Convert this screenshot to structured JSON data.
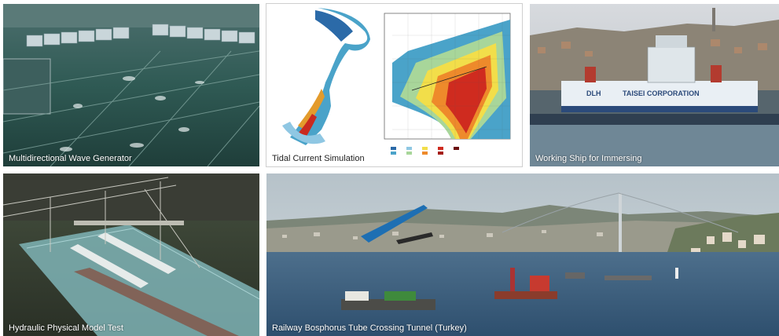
{
  "panels": [
    {
      "caption": "Multidirectional Wave Generator"
    },
    {
      "caption": "Tidal Current Simulation"
    },
    {
      "caption": "Working Ship for Immersing",
      "banner_left": "DLH",
      "banner_right": "TAISEI CORPORATION"
    },
    {
      "caption": "Hydraulic Physical Model Test"
    },
    {
      "caption": "Railway Bosphorus Tube Crossing Tunnel (Turkey)"
    }
  ]
}
